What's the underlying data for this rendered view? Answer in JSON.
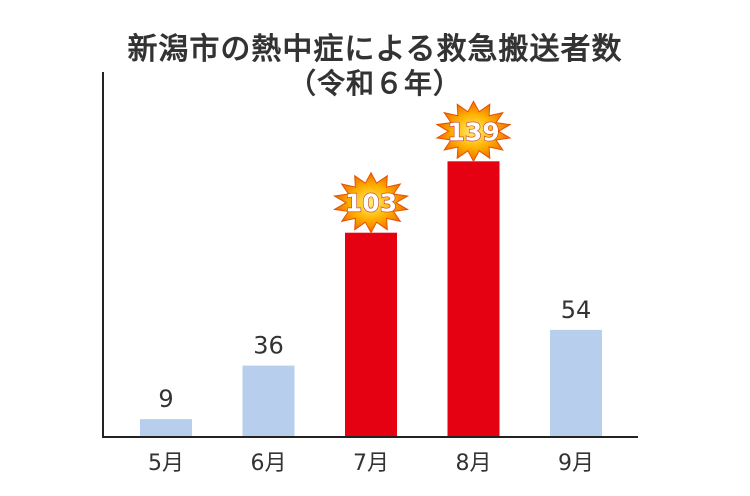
{
  "chart_data": {
    "type": "bar",
    "title": "新潟市の熱中症による救急搬送者数",
    "subtitle": "（令和６年）",
    "categories": [
      "5月",
      "6月",
      "7月",
      "8月",
      "9月"
    ],
    "values": [
      9,
      36,
      103,
      139,
      54
    ],
    "highlighted": [
      false,
      false,
      true,
      true,
      false
    ],
    "ylim": [
      0,
      180
    ],
    "grid": false,
    "colors": {
      "normal": "#b7cfec",
      "highlight": "#e50012",
      "burst": "#f39800"
    }
  }
}
